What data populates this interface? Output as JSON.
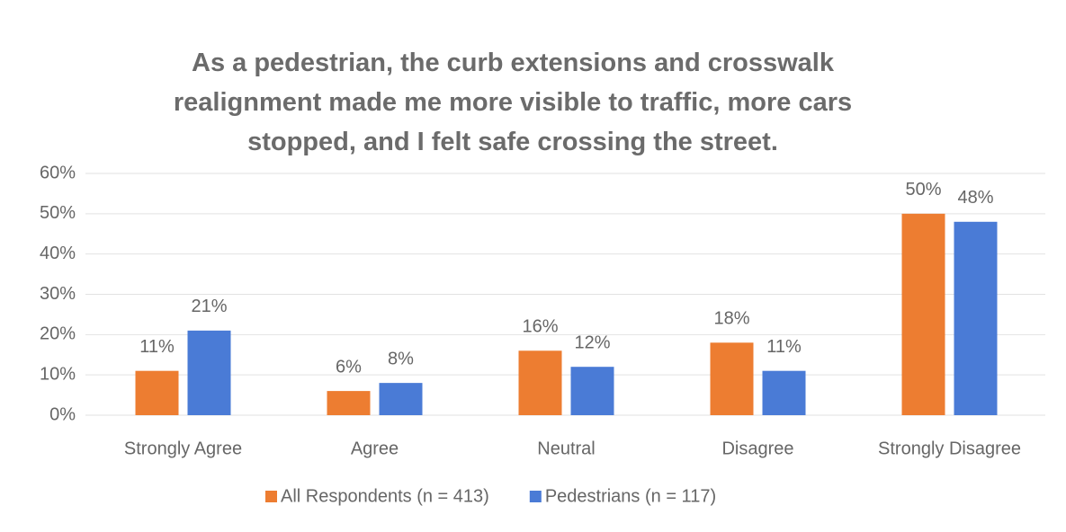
{
  "chart_data": {
    "type": "bar",
    "title": "As a pedestrian, the curb extensions and crosswalk realignment made me more visible to traffic, more cars stopped, and I felt safe crossing the street.",
    "categories": [
      "Strongly Agree",
      "Agree",
      "Neutral",
      "Disagree",
      "Strongly Disagree"
    ],
    "series": [
      {
        "name": "All Respondents (n = 413)",
        "color": "#ed7d31",
        "values": [
          11,
          6,
          16,
          18,
          50
        ],
        "value_labels": [
          "11%",
          "6%",
          "16%",
          "18%",
          "50%"
        ]
      },
      {
        "name": "Pedestrians (n = 117)",
        "color": "#4a7bd6",
        "values": [
          21,
          8,
          12,
          11,
          48
        ],
        "value_labels": [
          "21%",
          "8%",
          "12%",
          "11%",
          "48%"
        ]
      }
    ],
    "ylim": [
      0,
      60
    ],
    "yticks": [
      {
        "value": 0,
        "label": "0%"
      },
      {
        "value": 10,
        "label": "10%"
      },
      {
        "value": 20,
        "label": "20%"
      },
      {
        "value": 30,
        "label": "30%"
      },
      {
        "value": 40,
        "label": "40%"
      },
      {
        "value": 50,
        "label": "50%"
      },
      {
        "value": 60,
        "label": "60%"
      }
    ],
    "grid": true,
    "legend": "bottom"
  }
}
